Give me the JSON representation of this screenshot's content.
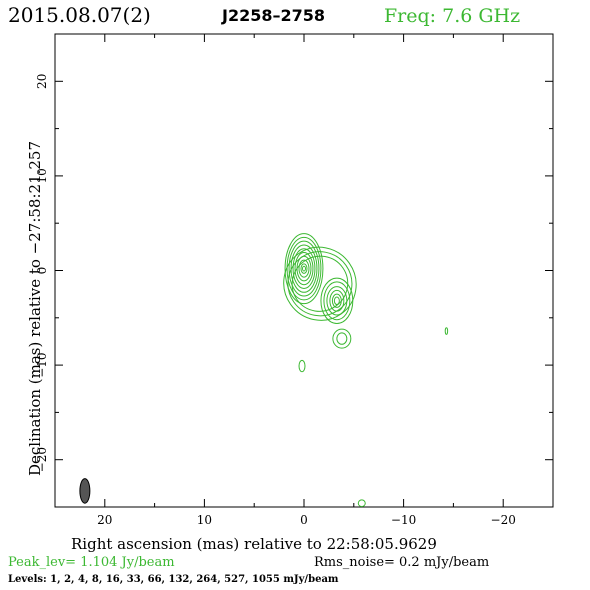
{
  "header": {
    "date": "2015.08.07(2)",
    "source": "J2258–2758",
    "freq": "Freq: 7.6 GHz"
  },
  "colors": {
    "contour": "#3cb832",
    "text_green": "#3cb832",
    "beam": "#555555"
  },
  "chart_data": {
    "type": "contour",
    "xlabel": "Right ascension (mas) relative to 22:58:05.9629",
    "ylabel": "Declination (mas) relative to −27:58:21.257",
    "xlim": [
      25,
      -25
    ],
    "ylim": [
      -25,
      25
    ],
    "x_ticks": [
      20,
      10,
      0,
      -10,
      -20
    ],
    "y_ticks": [
      20,
      10,
      0,
      -10,
      -20
    ],
    "x_tick_labels": [
      "20",
      "10",
      "0",
      "−10",
      "−20"
    ],
    "y_tick_labels": [
      "20",
      "10",
      "0",
      "−10",
      "−20"
    ],
    "peak": [
      0,
      0
    ],
    "components": [
      {
        "x": 0.0,
        "y": 0.2,
        "type": "core"
      },
      {
        "x": -3.3,
        "y": -3.2,
        "type": "jet"
      },
      {
        "x": -3.8,
        "y": -7.2,
        "type": "jet-tail"
      },
      {
        "x": 0.2,
        "y": -10.1,
        "type": "island"
      },
      {
        "x": -14.3,
        "y": -6.4,
        "type": "island"
      },
      {
        "x": -5.8,
        "y": -24.6,
        "type": "island"
      }
    ],
    "beam": {
      "x": 22,
      "y": -23.3,
      "major_mas": 2.6,
      "minor_mas": 1.0,
      "pa_deg": 0
    }
  },
  "footer": {
    "peak": "Peak_lev=  1.104 Jy/beam",
    "rms": "Rms_noise=  0.2 mJy/beam",
    "levels": "Levels:   1,    2,    4,    8,   16,   33,   66, 132, 264, 527, 1055 mJy/beam"
  }
}
